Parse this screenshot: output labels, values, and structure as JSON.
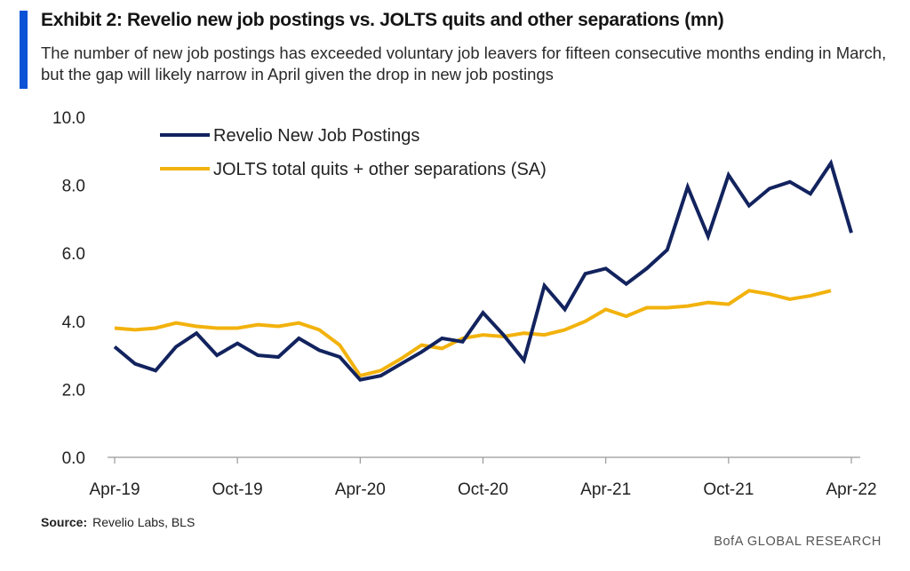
{
  "header": {
    "title": "Exhibit 2: Revelio new job postings vs. JOLTS quits and other separations (mn)",
    "subtitle": "The number of new job postings has exceeded voluntary job leavers for fifteen consecutive months ending in March, but the gap will likely narrow in April given the drop in new job postings"
  },
  "footer": {
    "source_label": "Source:",
    "source_text": "Revelio Labs, BLS",
    "brand": "BofA GLOBAL RESEARCH"
  },
  "colors": {
    "accent": "#0a52d6",
    "revelio": "#12235e",
    "jolts": "#f2b20d"
  },
  "chart_data": {
    "type": "line",
    "title": "Exhibit 2: Revelio new job postings vs. JOLTS quits and other separations (mn)",
    "xlabel": "",
    "ylabel": "",
    "x_tick_labels": [
      "Apr-19",
      "Oct-19",
      "Apr-20",
      "Oct-20",
      "Apr-21",
      "Oct-21",
      "Apr-22"
    ],
    "y_tick_labels": [
      "0.0",
      "2.0",
      "4.0",
      "6.0",
      "8.0",
      "10.0"
    ],
    "ylim": [
      0,
      10
    ],
    "legend_position": "top-left",
    "x": [
      "Apr-19",
      "May-19",
      "Jun-19",
      "Jul-19",
      "Aug-19",
      "Sep-19",
      "Oct-19",
      "Nov-19",
      "Dec-19",
      "Jan-20",
      "Feb-20",
      "Mar-20",
      "Apr-20",
      "May-20",
      "Jun-20",
      "Jul-20",
      "Aug-20",
      "Sep-20",
      "Oct-20",
      "Nov-20",
      "Dec-20",
      "Jan-21",
      "Feb-21",
      "Mar-21",
      "Apr-21",
      "May-21",
      "Jun-21",
      "Jul-21",
      "Aug-21",
      "Sep-21",
      "Oct-21",
      "Nov-21",
      "Dec-21",
      "Jan-22",
      "Feb-22",
      "Mar-22",
      "Apr-22"
    ],
    "series": [
      {
        "name": "Revelio New Job Postings",
        "color": "#12235e",
        "values": [
          3.25,
          2.75,
          2.55,
          3.25,
          3.65,
          3.0,
          3.35,
          3.0,
          2.95,
          3.5,
          3.15,
          2.95,
          2.28,
          2.4,
          2.75,
          3.1,
          3.5,
          3.4,
          4.25,
          3.6,
          2.85,
          5.05,
          4.35,
          5.4,
          5.55,
          5.1,
          5.55,
          6.1,
          7.95,
          6.5,
          8.3,
          7.4,
          7.9,
          8.1,
          7.75,
          8.65,
          6.6
        ]
      },
      {
        "name": "JOLTS total quits + other separations (SA)",
        "color": "#f2b20d",
        "values": [
          3.8,
          3.75,
          3.8,
          3.95,
          3.85,
          3.8,
          3.8,
          3.9,
          3.85,
          3.95,
          3.75,
          3.3,
          2.4,
          2.55,
          2.9,
          3.3,
          3.2,
          3.5,
          3.6,
          3.55,
          3.65,
          3.6,
          3.75,
          4.0,
          4.35,
          4.15,
          4.4,
          4.4,
          4.45,
          4.55,
          4.5,
          4.9,
          4.8,
          4.65,
          4.75,
          4.9,
          null
        ]
      }
    ]
  }
}
